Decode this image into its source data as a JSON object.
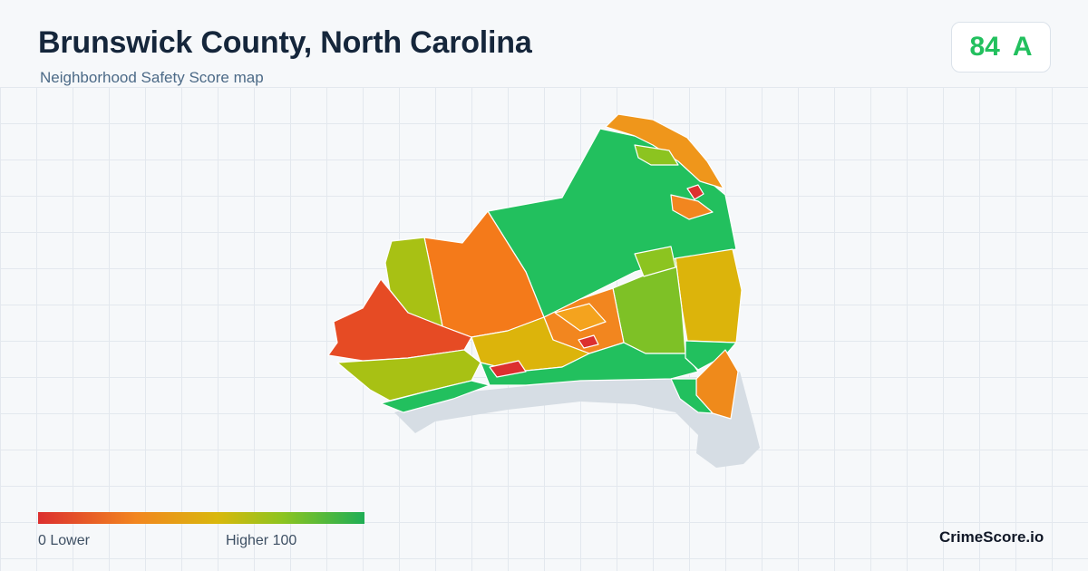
{
  "header": {
    "title": "Brunswick County, North Carolina",
    "subtitle": "Neighborhood Safety Score map"
  },
  "score": {
    "value": "84",
    "grade": "A",
    "color": "#22c05e"
  },
  "legend": {
    "min_label": "0  Lower",
    "max_label": "Higher  100",
    "colors": [
      "#dc2f2f",
      "#f2861f",
      "#d9b80c",
      "#8cc420",
      "#1fae55"
    ]
  },
  "brand": "CrimeScore.io",
  "colors": {
    "water": "#d6dde4",
    "high": "#22c05e",
    "mid_high": "#7cc427",
    "mid": "#d9b80c",
    "low": "#f2861f",
    "lowest": "#e0332b"
  }
}
